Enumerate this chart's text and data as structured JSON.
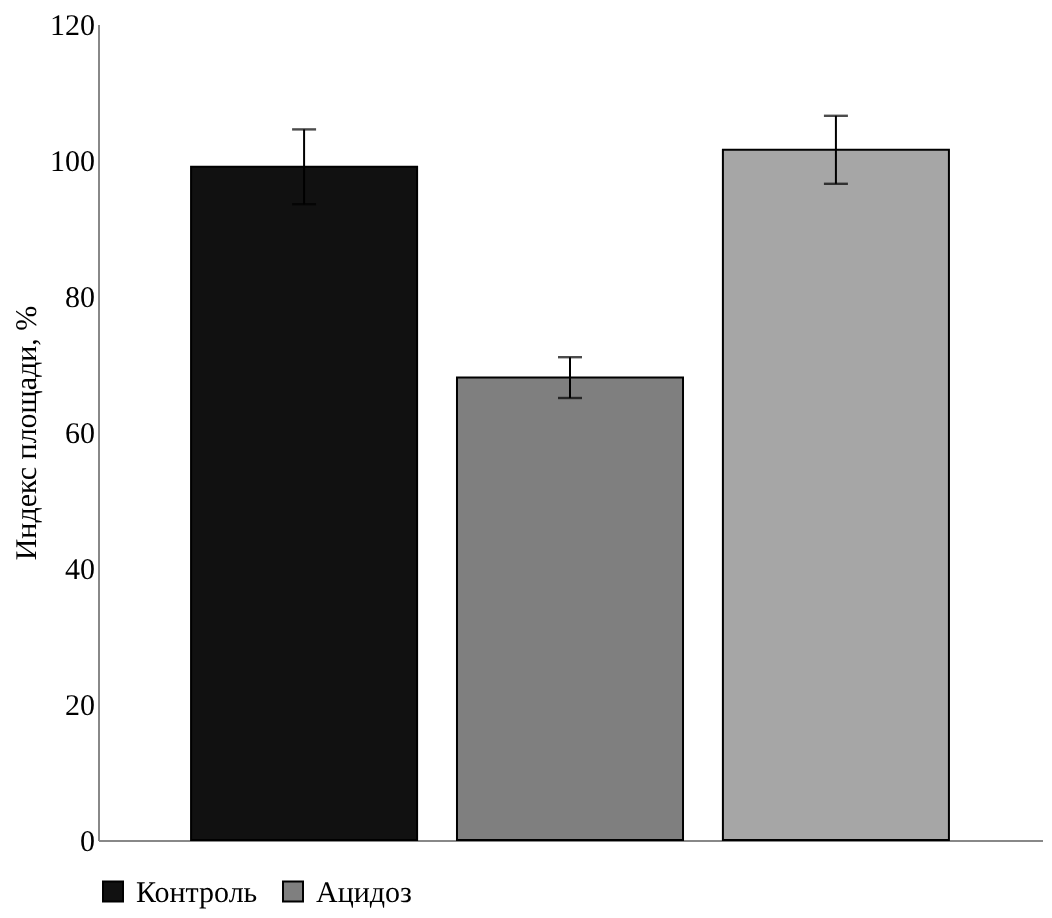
{
  "chart_data": {
    "type": "bar",
    "ylabel": "Индекс площади, %",
    "categories": [
      null
    ],
    "series": [
      {
        "name": "Контроль",
        "color": "#111111",
        "values": [
          99
        ],
        "errors": [
          5.5
        ]
      },
      {
        "name": "Ацидоз",
        "color": "#7f7f7f",
        "values": [
          68
        ],
        "errors": [
          3
        ]
      },
      {
        "color": "#a6a6a6",
        "values": [
          101.5
        ],
        "errors": [
          5
        ]
      }
    ],
    "ylim": [
      0,
      120
    ],
    "yticks": [
      0,
      20,
      40,
      60,
      80,
      100,
      120
    ],
    "grid": false,
    "legend": "bottom"
  }
}
